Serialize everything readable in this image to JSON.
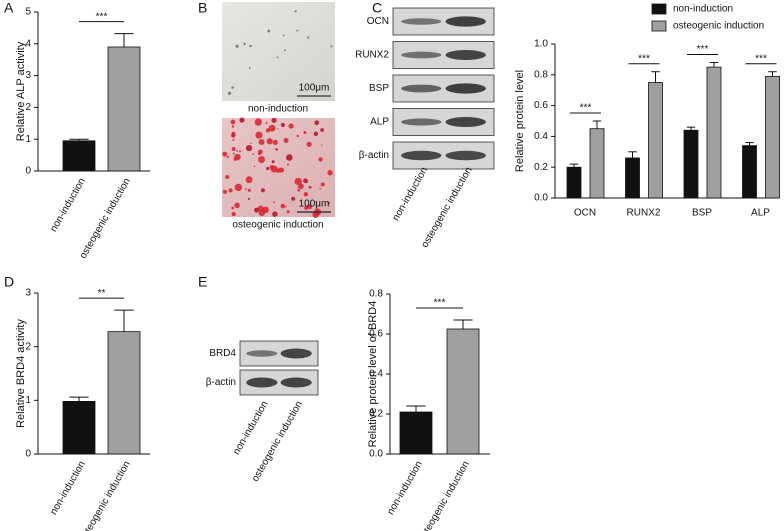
{
  "chart_data": [
    {
      "type": "bar",
      "panel": "A",
      "y_label": "Relative ALP activity",
      "categories": [
        "non-induction",
        "osteogenic induction"
      ],
      "values": [
        0.95,
        3.9
      ],
      "errors": [
        0.05,
        0.42
      ],
      "colors": [
        "#111111",
        "#a0a0a0"
      ],
      "significance": "***",
      "ylim": [
        0,
        5
      ],
      "yticks": [
        0,
        1,
        2,
        3,
        4,
        5
      ]
    },
    {
      "type": "grouped-bar",
      "y_label": "Relative protein level",
      "categories": [
        "OCN",
        "RUNX2",
        "BSP",
        "ALP"
      ],
      "series": [
        {
          "name": "non-induction",
          "color": "#111111",
          "values": [
            0.2,
            0.26,
            0.44,
            0.34
          ],
          "errors": [
            0.02,
            0.04,
            0.02,
            0.02
          ]
        },
        {
          "name": "osteogenic induction",
          "color": "#a0a0a0",
          "values": [
            0.45,
            0.75,
            0.85,
            0.79
          ],
          "errors": [
            0.05,
            0.07,
            0.03,
            0.03
          ]
        }
      ],
      "significance": [
        "***",
        "***",
        "***",
        "***"
      ],
      "legend": "top-right",
      "ylim": [
        0,
        1
      ],
      "yticks": [
        {
          "value": 0,
          "label": "0.0"
        },
        0.2,
        0.4,
        0.6,
        0.8,
        {
          "value": 1,
          "label": "1.0"
        }
      ]
    },
    {
      "type": "bar",
      "panel": "D",
      "y_label": "Relative BRD4 activity",
      "categories": [
        "non-induction",
        "osteogenic induction"
      ],
      "values": [
        0.98,
        2.28
      ],
      "errors": [
        0.08,
        0.4
      ],
      "colors": [
        "#111111",
        "#a0a0a0"
      ],
      "significance": "**",
      "ylim": [
        0,
        3
      ],
      "yticks": [
        0,
        1,
        2,
        3
      ]
    },
    {
      "type": "bar",
      "y_label": "Relative protein level of BRD4",
      "categories": [
        "non-induction",
        "osteogenic induction"
      ],
      "values": [
        0.21,
        0.625
      ],
      "errors": [
        0.03,
        0.045
      ],
      "colors": [
        "#111111",
        "#a0a0a0"
      ],
      "significance": "***",
      "ylim": [
        0,
        0.8
      ],
      "yticks": [
        {
          "value": 0,
          "label": "0.0"
        },
        0.2,
        0.4,
        0.6,
        0.8
      ]
    }
  ],
  "micrographs": {
    "panel": "B",
    "images": [
      {
        "caption": "non-induction",
        "scale_bar": "100μm"
      },
      {
        "caption": "osteogenic induction",
        "scale_bar": "100μm"
      }
    ]
  },
  "blots": [
    {
      "panel": "C",
      "bands": [
        "OCN",
        "RUNX2",
        "BSP",
        "ALP",
        "β-actin"
      ],
      "lanes": [
        "non-induction",
        "osteogenic induction"
      ]
    },
    {
      "panel": "E",
      "bands": [
        "BRD4",
        "β-actin"
      ],
      "lanes": [
        "non-induction",
        "osteogenic induction"
      ]
    }
  ]
}
